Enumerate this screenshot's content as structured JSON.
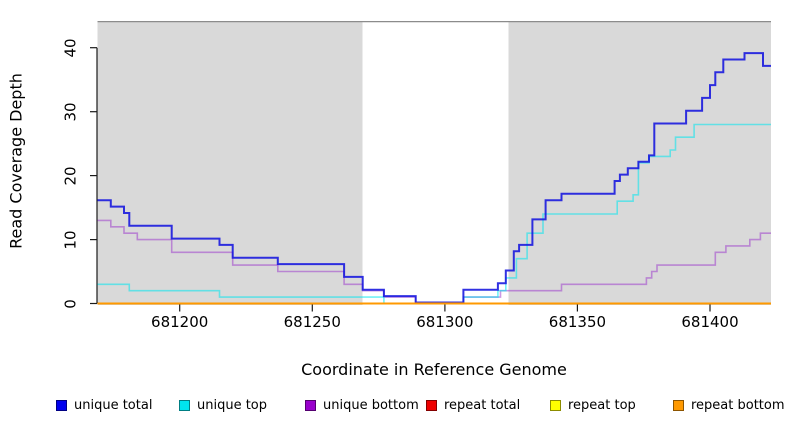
{
  "figure": {
    "background": "#ffffff"
  },
  "chart_data": {
    "type": "line",
    "subtype": "step",
    "title": "",
    "xlabel": "Coordinate in Reference Genome",
    "ylabel": "Read Coverage Depth",
    "x_range": [
      681169,
      681423
    ],
    "y_range": [
      0,
      44
    ],
    "x_ticks": [
      681200,
      681250,
      681300,
      681350,
      681400
    ],
    "y_ticks": [
      0,
      10,
      20,
      30,
      40
    ],
    "grid": false,
    "legend_position": "bottom",
    "panel_background": "#d9d9d9",
    "panel_top_border_color": "#8c8c8c",
    "axis_color": "#1a1a1a",
    "gap_region": {
      "from": 681269,
      "to": 681324,
      "color": "#ffffff"
    },
    "series": [
      {
        "name": "unique total",
        "color": "rgba(20,20,222,0.88)",
        "width": 2,
        "points": [
          [
            681169,
            16
          ],
          [
            681174,
            15
          ],
          [
            681179,
            14
          ],
          [
            681181,
            12
          ],
          [
            681197,
            10
          ],
          [
            681215,
            9
          ],
          [
            681220,
            7
          ],
          [
            681237,
            6
          ],
          [
            681262,
            4
          ],
          [
            681269,
            2
          ],
          [
            681277,
            1
          ],
          [
            681289,
            0
          ],
          [
            681307,
            2
          ],
          [
            681320,
            3
          ],
          [
            681323,
            5
          ],
          [
            681326,
            8
          ],
          [
            681328,
            9
          ],
          [
            681333,
            13
          ],
          [
            681338,
            16
          ],
          [
            681344,
            17
          ],
          [
            681364,
            19
          ],
          [
            681366,
            20
          ],
          [
            681369,
            21
          ],
          [
            681373,
            22
          ],
          [
            681377,
            23
          ],
          [
            681379,
            28
          ],
          [
            681391,
            30
          ],
          [
            681397,
            32
          ],
          [
            681400,
            34
          ],
          [
            681402,
            36
          ],
          [
            681405,
            38
          ],
          [
            681413,
            39
          ],
          [
            681420,
            37
          ],
          [
            681423,
            37
          ]
        ]
      },
      {
        "name": "unique top",
        "color": "rgba(0,229,238,0.55)",
        "width": 1.6,
        "points": [
          [
            681169,
            3
          ],
          [
            681181,
            2
          ],
          [
            681215,
            1
          ],
          [
            681277,
            0
          ],
          [
            681307,
            1
          ],
          [
            681320,
            2
          ],
          [
            681323,
            4
          ],
          [
            681327,
            7
          ],
          [
            681331,
            11
          ],
          [
            681337,
            14
          ],
          [
            681365,
            16
          ],
          [
            681371,
            17
          ],
          [
            681373,
            22
          ],
          [
            681377,
            23
          ],
          [
            681385,
            24
          ],
          [
            681387,
            26
          ],
          [
            681394,
            28
          ],
          [
            681423,
            28
          ]
        ]
      },
      {
        "name": "unique bottom",
        "color": "rgba(153,50,204,0.5)",
        "width": 1.6,
        "points": [
          [
            681169,
            13
          ],
          [
            681174,
            12
          ],
          [
            681179,
            11
          ],
          [
            681184,
            10
          ],
          [
            681197,
            8
          ],
          [
            681220,
            6
          ],
          [
            681237,
            5
          ],
          [
            681262,
            3
          ],
          [
            681269,
            2
          ],
          [
            681277,
            1
          ],
          [
            681289,
            0
          ],
          [
            681307,
            1
          ],
          [
            681321,
            2
          ],
          [
            681344,
            3
          ],
          [
            681376,
            4
          ],
          [
            681378,
            5
          ],
          [
            681380,
            6
          ],
          [
            681402,
            8
          ],
          [
            681406,
            9
          ],
          [
            681415,
            10
          ],
          [
            681419,
            11
          ],
          [
            681423,
            11
          ]
        ]
      },
      {
        "name": "repeat total",
        "color": "rgba(238,0,0,1)",
        "width": 1.8,
        "points": [
          [
            681169,
            0
          ],
          [
            681423,
            0
          ]
        ]
      },
      {
        "name": "repeat top",
        "color": "rgba(255,255,0,1)",
        "width": 1.8,
        "points": [
          [
            681169,
            0
          ],
          [
            681423,
            0
          ]
        ]
      },
      {
        "name": "repeat bottom",
        "color": "rgba(255,153,0,1)",
        "width": 2,
        "points": [
          [
            681169,
            0
          ],
          [
            681423,
            0
          ]
        ]
      }
    ]
  },
  "legend": {
    "items": [
      {
        "label": "unique total",
        "color": "#0000ee"
      },
      {
        "label": "unique top",
        "color": "#00e5ee"
      },
      {
        "label": "unique bottom",
        "color": "#9900cc"
      },
      {
        "label": "repeat total",
        "color": "#ee0000"
      },
      {
        "label": "repeat top",
        "color": "#ffff00"
      },
      {
        "label": "repeat bottom",
        "color": "#ff9900"
      }
    ]
  }
}
